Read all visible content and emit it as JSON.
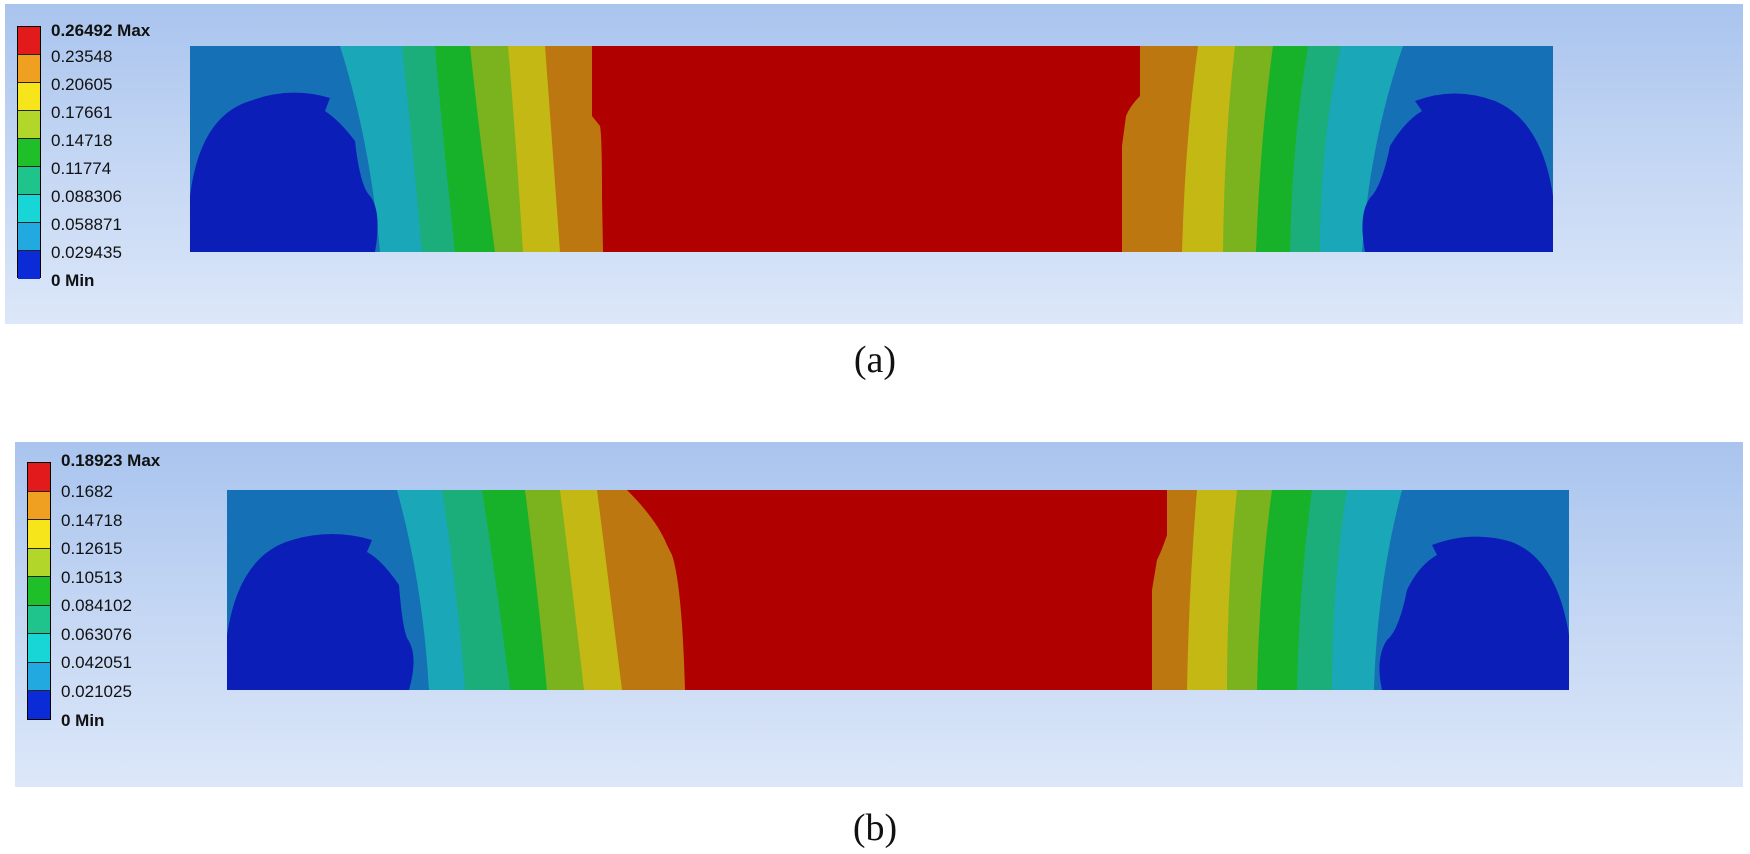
{
  "panels": [
    {
      "id": "a",
      "caption": "(a)",
      "legend": {
        "max_label": "0.26492 Max",
        "labels": [
          "0.23548",
          "0.20605",
          "0.17661",
          "0.14718",
          "0.11774",
          "0.088306",
          "0.058871",
          "0.029435"
        ],
        "min_label": "0 Min"
      }
    },
    {
      "id": "b",
      "caption": "(b)",
      "legend": {
        "max_label": "0.18923 Max",
        "labels": [
          "0.1682",
          "0.14718",
          "0.12615",
          "0.10513",
          "0.084102",
          "0.063076",
          "0.042051",
          "0.021025"
        ],
        "min_label": "0 Min"
      }
    }
  ],
  "colors": {
    "legend": [
      "#e31a1c",
      "#f0a020",
      "#f5e51a",
      "#b3d62a",
      "#1fbf2a",
      "#1ec48c",
      "#18d6d6",
      "#22a9e0",
      "#0a2bd6"
    ],
    "bands": [
      "#0b1fb8",
      "#1670b5",
      "#1aa7b8",
      "#1bae7a",
      "#17b12a",
      "#7ab31e",
      "#c4b914",
      "#bd7711",
      "#b00000"
    ]
  }
}
